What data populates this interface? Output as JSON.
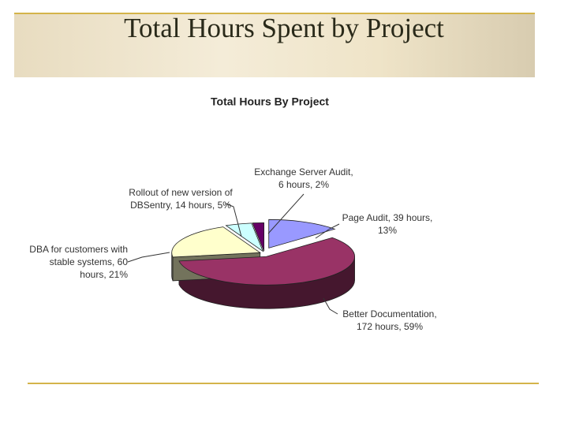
{
  "slide": {
    "title": "Total Hours Spent by Project"
  },
  "chart_data": {
    "type": "pie",
    "title": "Total Hours By Project",
    "values": [
      39,
      172,
      60,
      14,
      6
    ],
    "value_labels": [
      "Page Audit, 39 hours, 13%",
      "Better Documentation, 172 hours, 59%",
      "DBA for customers with stable systems, 60 hours, 21%",
      "Rollout of new version of DBSentry, 14 hours, 5%",
      "Exchange Server Audit, 6 hours, 2%"
    ],
    "colors": [
      "#9999ff",
      "#993366",
      "#ffffcc",
      "#ccffff",
      "#660066"
    ]
  }
}
